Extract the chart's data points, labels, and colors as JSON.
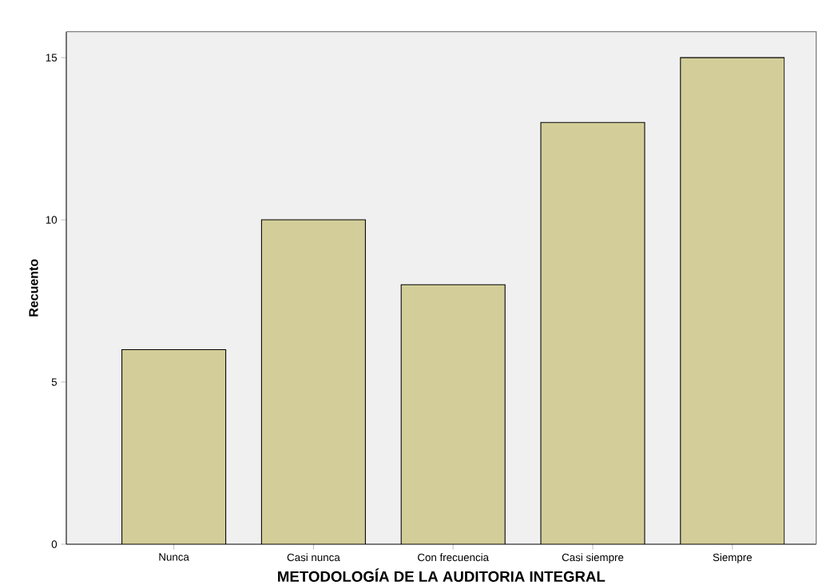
{
  "chart_data": {
    "type": "bar",
    "xlabel": "METODOLOGÍA DE LA AUDITORIA INTEGRAL",
    "ylabel": "Recuento",
    "categories": [
      "Nunca",
      "Casi nunca",
      "Con frecuencia",
      "Casi siempre",
      "Siempre"
    ],
    "values": [
      6,
      10,
      8,
      13,
      15
    ],
    "color": "#d3ce99",
    "ylim": [
      0,
      15.8
    ],
    "yticks": [
      0,
      5,
      10,
      15
    ]
  }
}
